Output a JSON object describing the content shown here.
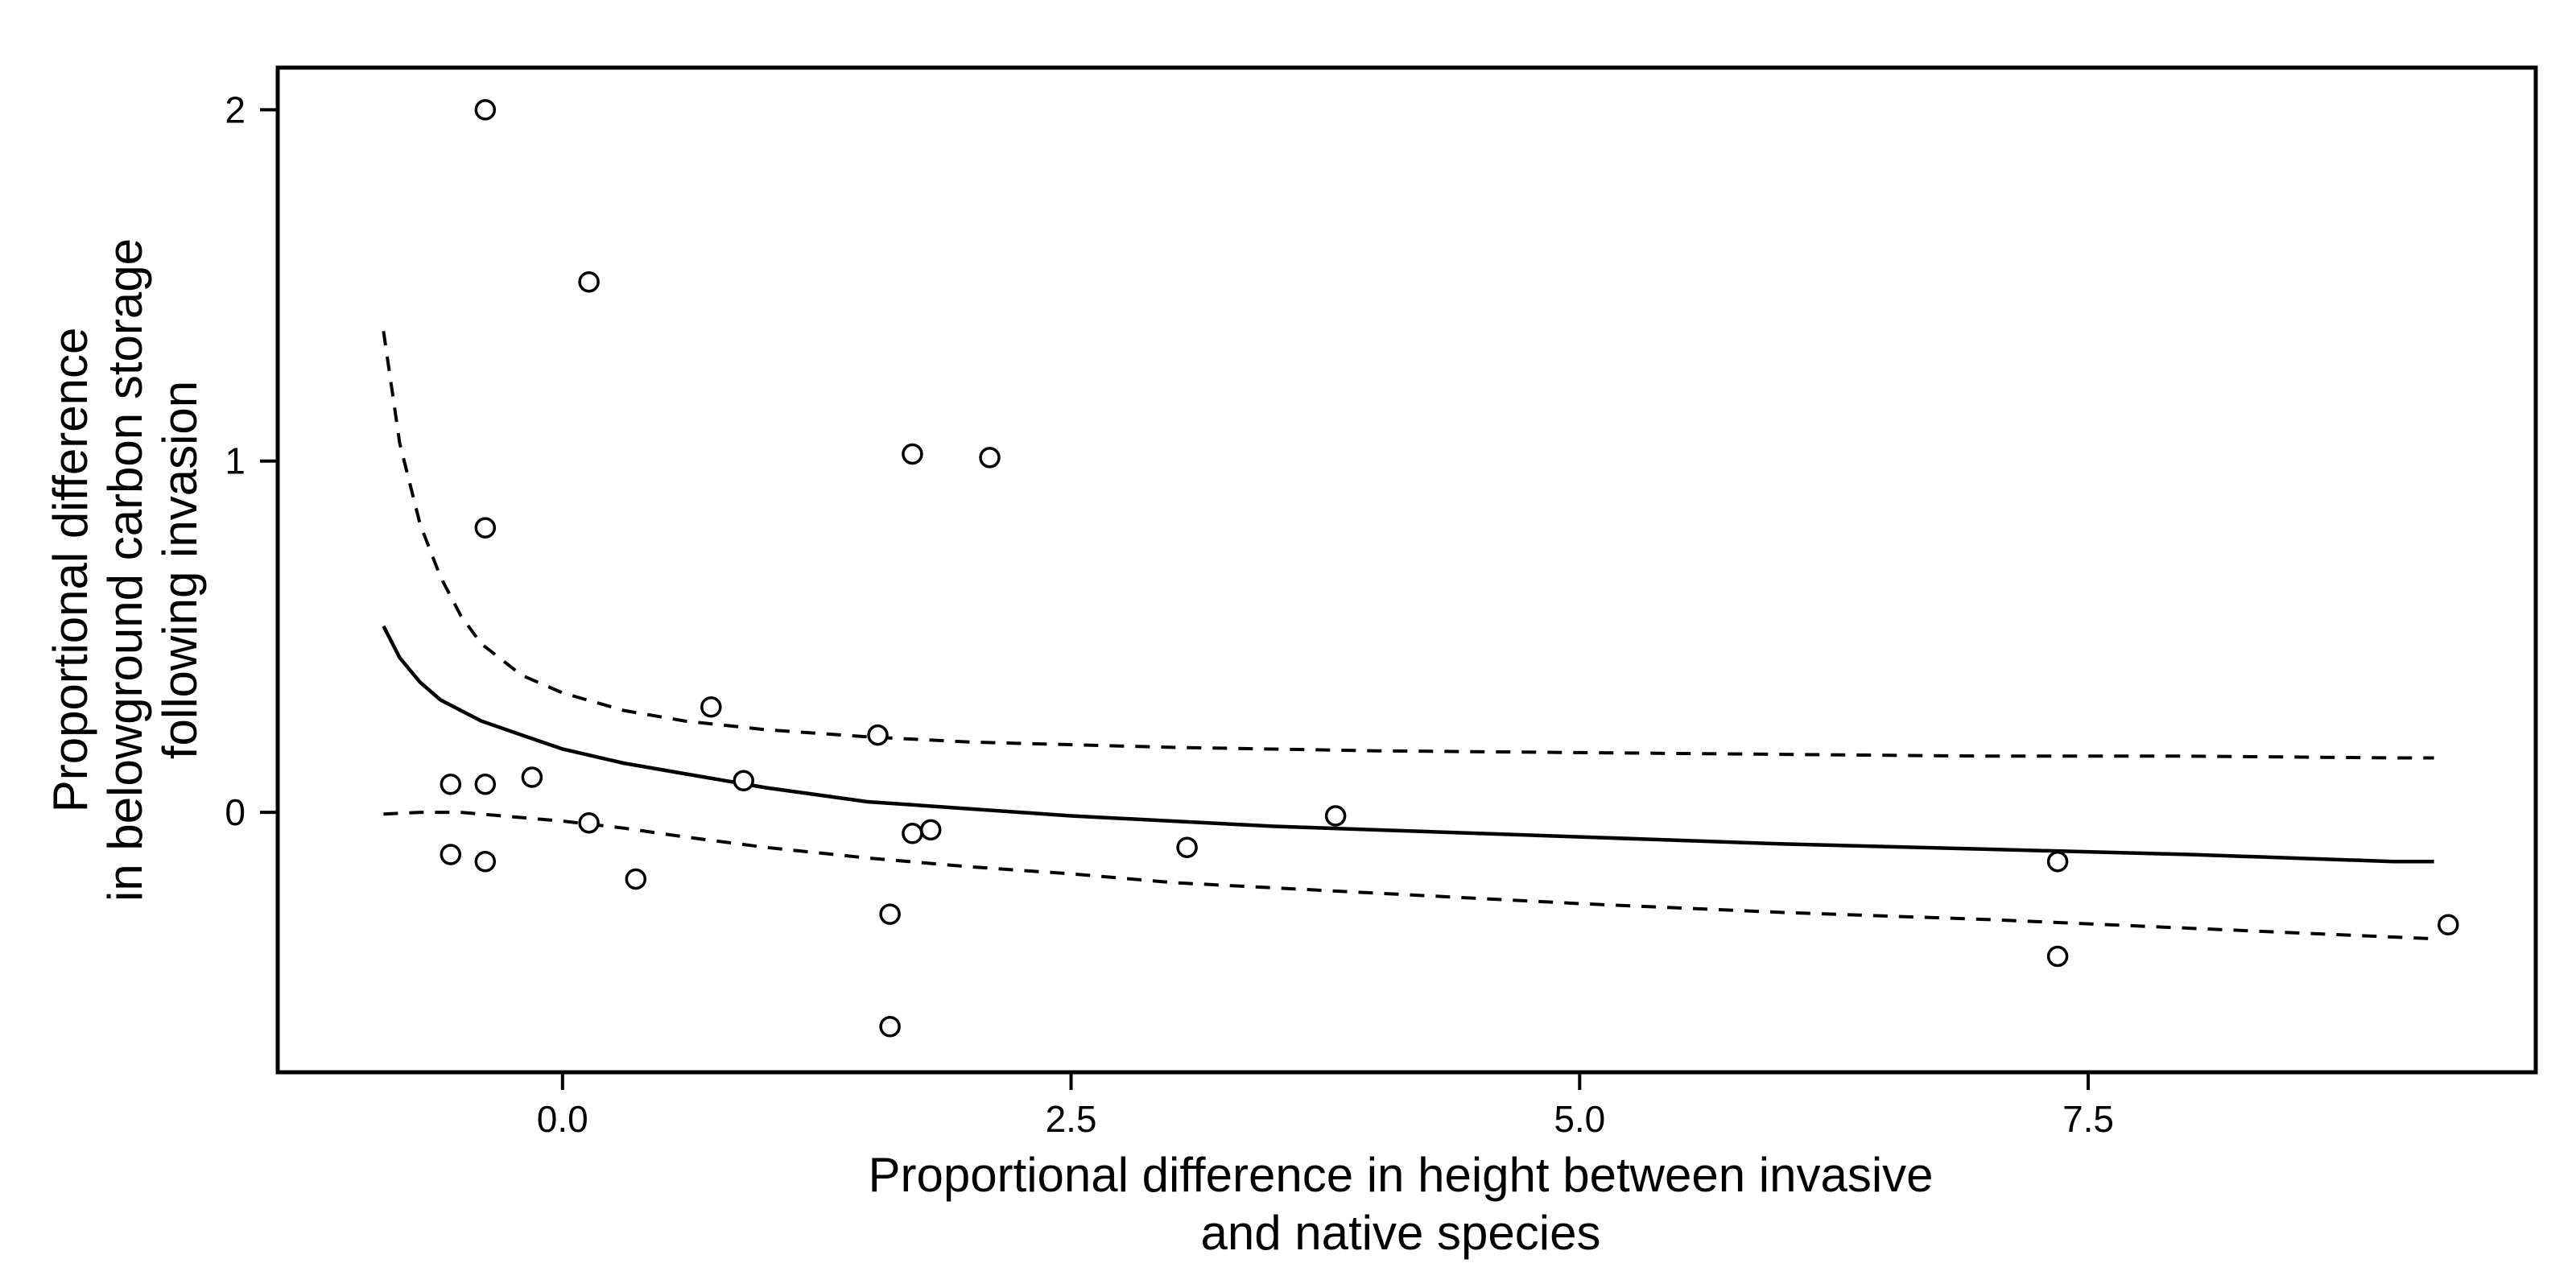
{
  "chart_data": {
    "type": "scatter",
    "xlabel": [
      "Proportional difference in height between invasive",
      "and native species"
    ],
    "ylabel": [
      "Proportional difference",
      "in belowground carbon storage",
      "following invasion"
    ],
    "xlim": [
      -1.4,
      9.7
    ],
    "ylim": [
      -0.74,
      2.12
    ],
    "x_ticks": [
      0.0,
      2.5,
      5.0,
      7.5
    ],
    "x_tick_labels": [
      "0.0",
      "2.5",
      "5.0",
      "7.5"
    ],
    "y_ticks": [
      0,
      1,
      2
    ],
    "y_tick_labels": [
      "0",
      "1",
      "2"
    ],
    "grid": false,
    "points": [
      {
        "x": -0.38,
        "y": 2.0
      },
      {
        "x": 0.13,
        "y": 1.51
      },
      {
        "x": 1.72,
        "y": 1.02
      },
      {
        "x": 2.1,
        "y": 1.01
      },
      {
        "x": -0.38,
        "y": 0.81
      },
      {
        "x": 0.73,
        "y": 0.3
      },
      {
        "x": 1.55,
        "y": 0.22
      },
      {
        "x": -0.55,
        "y": 0.08
      },
      {
        "x": -0.38,
        "y": 0.08
      },
      {
        "x": -0.15,
        "y": 0.1
      },
      {
        "x": 0.89,
        "y": 0.09
      },
      {
        "x": 3.8,
        "y": -0.01
      },
      {
        "x": 0.13,
        "y": -0.03
      },
      {
        "x": 1.72,
        "y": -0.06
      },
      {
        "x": 1.81,
        "y": -0.05
      },
      {
        "x": 3.07,
        "y": -0.1
      },
      {
        "x": -0.55,
        "y": -0.12
      },
      {
        "x": -0.38,
        "y": -0.14
      },
      {
        "x": 0.36,
        "y": -0.19
      },
      {
        "x": 7.35,
        "y": -0.14
      },
      {
        "x": 1.61,
        "y": -0.29
      },
      {
        "x": 7.35,
        "y": -0.41
      },
      {
        "x": 9.27,
        "y": -0.32
      },
      {
        "x": 1.61,
        "y": -0.61
      }
    ],
    "fit_line": {
      "style": "solid",
      "x": [
        -0.88,
        -0.8,
        -0.7,
        -0.6,
        -0.5,
        -0.4,
        -0.2,
        0.0,
        0.3,
        0.6,
        1.0,
        1.5,
        2.0,
        2.5,
        3.0,
        3.5,
        4.0,
        5.0,
        6.0,
        7.0,
        8.0,
        9.0,
        9.2
      ],
      "y": [
        0.53,
        0.44,
        0.37,
        0.32,
        0.29,
        0.26,
        0.22,
        0.18,
        0.14,
        0.11,
        0.07,
        0.03,
        0.01,
        -0.01,
        -0.025,
        -0.04,
        -0.05,
        -0.07,
        -0.09,
        -0.105,
        -0.12,
        -0.14,
        -0.14
      ]
    },
    "confidence_band": {
      "style": "dashed",
      "upper": {
        "x": [
          -0.88,
          -0.8,
          -0.7,
          -0.6,
          -0.5,
          -0.4,
          -0.2,
          0.0,
          0.3,
          0.6,
          1.0,
          1.5,
          2.0,
          3.0,
          4.0,
          5.0,
          6.0,
          7.0,
          8.0,
          9.0,
          9.2
        ],
        "y": [
          1.37,
          1.05,
          0.82,
          0.67,
          0.56,
          0.48,
          0.39,
          0.34,
          0.29,
          0.26,
          0.235,
          0.215,
          0.2,
          0.185,
          0.175,
          0.17,
          0.165,
          0.16,
          0.16,
          0.155,
          0.155
        ]
      },
      "lower": {
        "x": [
          -0.88,
          -0.7,
          -0.5,
          -0.3,
          0.0,
          0.3,
          0.6,
          1.0,
          1.5,
          2.0,
          2.5,
          3.0,
          4.0,
          5.0,
          6.0,
          7.0,
          8.0,
          9.0,
          9.2
        ],
        "y": [
          -0.005,
          0.0,
          0.0,
          -0.01,
          -0.025,
          -0.045,
          -0.07,
          -0.1,
          -0.13,
          -0.155,
          -0.175,
          -0.2,
          -0.23,
          -0.26,
          -0.285,
          -0.305,
          -0.33,
          -0.355,
          -0.36
        ]
      }
    }
  }
}
